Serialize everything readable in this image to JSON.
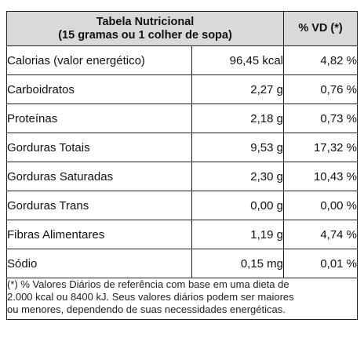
{
  "header": {
    "title_line1": "Tabela Nutricional",
    "title_line2": "(15 gramas ou 1 colher de sopa)",
    "vd_label": "% VD (*)"
  },
  "rows": [
    {
      "name": "Calorias (valor energético)",
      "amount": "96,45 kcal",
      "vd": "4,82 %"
    },
    {
      "name": "Carboidratos",
      "amount": "2,27 g",
      "vd": "0,76 %"
    },
    {
      "name": "Proteínas",
      "amount": "2,18 g",
      "vd": "0,73 %"
    },
    {
      "name": "Gorduras Totais",
      "amount": "9,53 g",
      "vd": "17,32 %"
    },
    {
      "name": "Gorduras Saturadas",
      "amount": "2,30 g",
      "vd": "10,43 %"
    },
    {
      "name": "Gorduras Trans",
      "amount": "0,00 g",
      "vd": "0,00 %"
    },
    {
      "name": "Fibras Alimentares",
      "amount": "1,19 g",
      "vd": "4,74 %"
    },
    {
      "name": "Sódio",
      "amount": "0,15 mg",
      "vd": "0,01 %"
    }
  ],
  "footnote": {
    "line1": "(*) % Valores Diários de referência com base em uma dieta de",
    "line2": "2.000 kcal ou 8400 kJ. Seus valores diários podem ser maiores",
    "line3": "ou menores, dependendo de suas necessidades energéticas."
  },
  "colors": {
    "header_bg": "#d9d9d9",
    "border": "#222222"
  }
}
